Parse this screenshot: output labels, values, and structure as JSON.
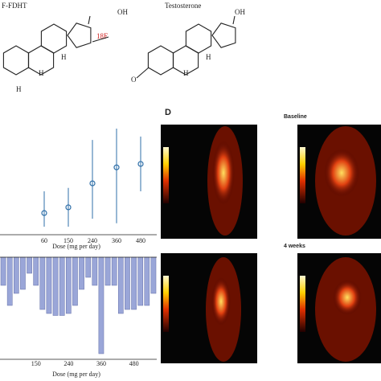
{
  "structures": [
    {
      "title": "F-FDHT",
      "oh": "OH",
      "fluorine": "18F",
      "h_labels": [
        "H",
        "H",
        "H"
      ]
    },
    {
      "title": "Testosterone",
      "oh": "OH",
      "oxygen": "O",
      "h_labels": [
        "H",
        "H"
      ]
    }
  ],
  "chart_data": [
    {
      "type": "errorbar",
      "categories": [
        "60",
        "150",
        "240",
        "360",
        "480"
      ],
      "values": [
        19,
        24,
        45,
        59,
        62
      ],
      "low": [
        7,
        7,
        14,
        10,
        38
      ],
      "high": [
        38,
        41,
        83,
        93,
        86
      ],
      "color": "#2f6fa8",
      "ylim": [
        0,
        100
      ],
      "xlabel": "Dose (mg per day)"
    },
    {
      "type": "bar",
      "categories": [
        null,
        null,
        null,
        null,
        null,
        "150",
        null,
        null,
        null,
        null,
        "240",
        null,
        null,
        null,
        null,
        "360",
        null,
        null,
        null,
        null,
        "480",
        null,
        null,
        null
      ],
      "values": [
        -28,
        -48,
        -36,
        -32,
        -16,
        -28,
        -52,
        -56,
        -58,
        -58,
        -56,
        -48,
        -32,
        -20,
        -28,
        -96,
        -28,
        -28,
        -56,
        -52,
        -52,
        -48,
        -48,
        -36
      ],
      "color": "#9aa6d8",
      "ylim": [
        -100,
        0
      ],
      "xlabel": "Dose (mg per day)"
    }
  ],
  "panel_d": {
    "label": "D",
    "rows": [
      "Baseline",
      "4 weeks"
    ]
  }
}
